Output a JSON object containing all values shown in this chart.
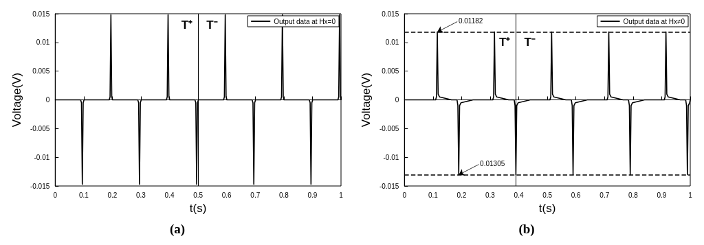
{
  "chart_data": [
    {
      "type": "line",
      "xlabel": "t(s)",
      "ylabel": "Voltage(V)",
      "xlim": [
        0,
        1
      ],
      "xticks": [
        0,
        0.1,
        0.2,
        0.3,
        0.4,
        0.5,
        0.6,
        0.7,
        0.8,
        0.9,
        1
      ],
      "ylim": [
        -0.015,
        0.015
      ],
      "yticks": [
        -0.015,
        -0.01,
        -0.005,
        0,
        0.005,
        0.01,
        0.015
      ],
      "legend": "top right",
      "line_style": "solid",
      "series": [
        {
          "name": "Output data at Hx=0",
          "color": "#000000",
          "x": [
            0,
            0.089,
            0.092,
            0.095,
            0.098,
            0.101,
            0.189,
            0.192,
            0.195,
            0.198,
            0.201,
            0.289,
            0.292,
            0.295,
            0.298,
            0.301,
            0.389,
            0.392,
            0.395,
            0.398,
            0.401,
            0.489,
            0.492,
            0.495,
            0.498,
            0.501,
            0.589,
            0.592,
            0.595,
            0.598,
            0.601,
            0.689,
            0.692,
            0.695,
            0.698,
            0.701,
            0.789,
            0.792,
            0.795,
            0.798,
            0.801,
            0.889,
            0.892,
            0.895,
            0.898,
            0.901,
            0.989,
            0.992,
            0.995,
            0.998,
            1
          ],
          "values": [
            0,
            0,
            -0.0005,
            -0.0147,
            -0.0005,
            0,
            0,
            0.0005,
            0.0148,
            0.0005,
            0,
            0,
            -0.0005,
            -0.0147,
            -0.0005,
            0,
            0,
            0.0005,
            0.0148,
            0.0005,
            0,
            0,
            -0.0005,
            -0.0147,
            -0.0005,
            0,
            0,
            0.0005,
            0.0148,
            0.0005,
            0,
            0,
            -0.0005,
            -0.0147,
            -0.0005,
            0,
            0,
            0.0005,
            0.0148,
            0.0005,
            0,
            0,
            -0.0005,
            -0.0147,
            -0.0005,
            0,
            0,
            0.0005,
            0.0148,
            0.0005,
            0
          ]
        }
      ],
      "ref_lines": [
        {
          "axis": "x",
          "value": 0.5,
          "color": "#000000",
          "line_style": "solid"
        }
      ],
      "annotations": [
        "T⁺",
        "T⁻",
        "(a)"
      ]
    },
    {
      "type": "line",
      "xlabel": "t(s)",
      "ylabel": "Voltage(V)",
      "xlim": [
        0,
        1
      ],
      "xticks": [
        0,
        0.1,
        0.2,
        0.3,
        0.4,
        0.5,
        0.6,
        0.7,
        0.8,
        0.9,
        1
      ],
      "ylim": [
        -0.015,
        0.015
      ],
      "yticks": [
        -0.015,
        -0.01,
        -0.005,
        0,
        0.005,
        0.01,
        0.015
      ],
      "legend": "top right",
      "line_style": "solid",
      "series": [
        {
          "name": "Output data at Hx≠0",
          "color": "#000000",
          "x": [
            0,
            0.05,
            0.109,
            0.112,
            0.115,
            0.118,
            0.123,
            0.165,
            0.184,
            0.187,
            0.19,
            0.193,
            0.198,
            0.24,
            0.309,
            0.312,
            0.315,
            0.318,
            0.323,
            0.365,
            0.384,
            0.387,
            0.39,
            0.393,
            0.398,
            0.44,
            0.509,
            0.512,
            0.515,
            0.518,
            0.523,
            0.565,
            0.584,
            0.587,
            0.59,
            0.593,
            0.598,
            0.64,
            0.709,
            0.712,
            0.715,
            0.718,
            0.723,
            0.765,
            0.784,
            0.787,
            0.79,
            0.793,
            0.798,
            0.84,
            0.909,
            0.912,
            0.915,
            0.918,
            0.923,
            0.965,
            0.984,
            0.987,
            0.99,
            0.993,
            0.998,
            1
          ],
          "values": [
            0,
            0,
            0,
            0.0005,
            0.01182,
            0.001,
            0.0005,
            0,
            0,
            -0.001,
            -0.01305,
            -0.001,
            -0.0005,
            0,
            0,
            0.0005,
            0.01182,
            0.001,
            0.0005,
            0,
            0,
            -0.001,
            -0.01305,
            -0.001,
            -0.0005,
            0,
            0,
            0.0005,
            0.01182,
            0.001,
            0.0005,
            0,
            0,
            -0.001,
            -0.01305,
            -0.001,
            -0.0005,
            0,
            0,
            0.0005,
            0.01182,
            0.001,
            0.0005,
            0,
            0,
            -0.001,
            -0.01305,
            -0.001,
            -0.0005,
            0,
            0,
            0.0005,
            0.01182,
            0.001,
            0.0005,
            0,
            0,
            -0.001,
            -0.01305,
            -0.001,
            -0.0005,
            0
          ]
        }
      ],
      "ref_lines": [
        {
          "axis": "x",
          "value": 0.39,
          "color": "#000000",
          "line_style": "solid"
        },
        {
          "axis": "y",
          "value": 0.01182,
          "color": "#000000",
          "line_style": "dashed"
        },
        {
          "axis": "y",
          "value": -0.01305,
          "color": "#000000",
          "line_style": "dashed"
        }
      ],
      "annotations": [
        {
          "text": "0.01182",
          "x": 0.115,
          "y": 0.01182
        },
        {
          "text": "0.01305",
          "x": 0.19,
          "y": -0.01305
        },
        "T⁺",
        "T⁻",
        "(b)"
      ]
    }
  ]
}
